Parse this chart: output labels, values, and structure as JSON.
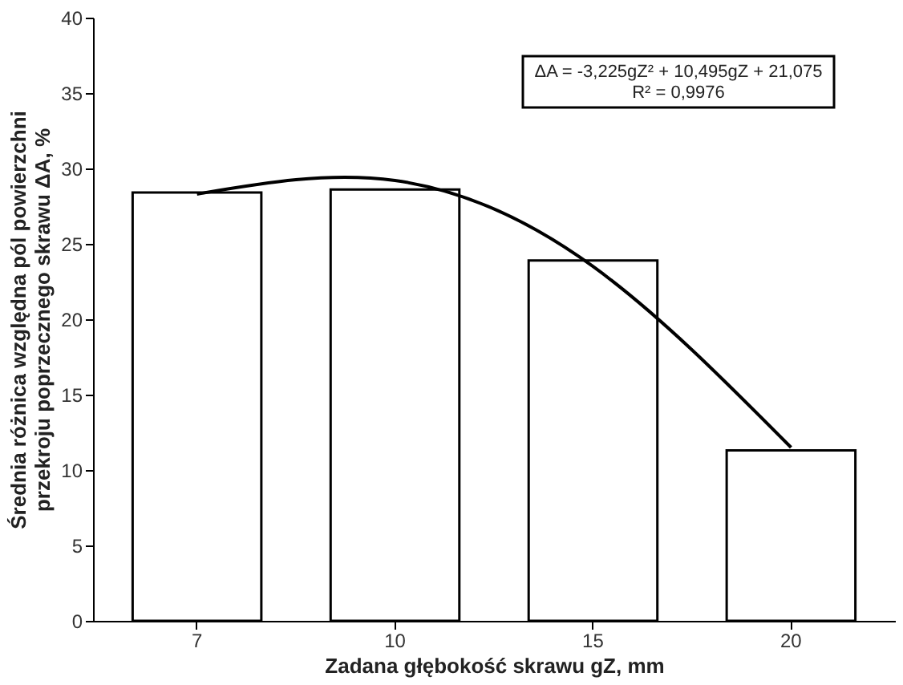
{
  "chart_data": {
    "type": "bar",
    "xlabel": "Zadana głębokość skrawu  gZ, mm",
    "ylabel": "Średnia różnica względna pól powierzchni\nprzekroju poprzecznego skrawu  ΔA, %",
    "categories": [
      "7",
      "10",
      "15",
      "20"
    ],
    "series": [
      {
        "color": "#ffffff",
        "values": [
          28.4,
          28.6,
          23.9,
          11.3
        ]
      },
      {
        "type": "line",
        "color": "#000000",
        "x": [
          "7",
          "10",
          "15",
          "20"
        ],
        "values": [
          28.3,
          29.2,
          23.5,
          11.5
        ]
      }
    ],
    "ylim": [
      0,
      40
    ],
    "yticks": [
      0,
      5,
      10,
      15,
      20,
      25,
      30,
      35,
      40
    ],
    "grid": false,
    "annotations": [
      "ΔA = -3,225gZ² + 10,495gZ + 21,075\nR² = 0,9976"
    ]
  }
}
